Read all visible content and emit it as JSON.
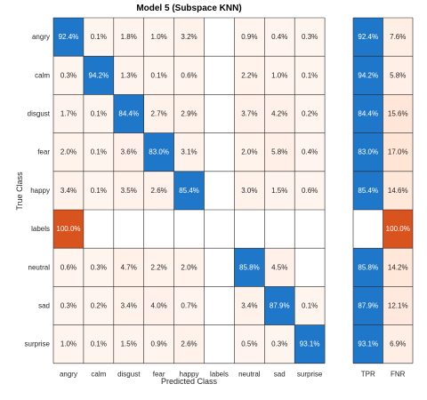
{
  "chart_data": {
    "type": "heatmap",
    "title": "Model 5 (Subspace KNN)",
    "xlabel": "Predicted Class",
    "ylabel": "True Class",
    "row_labels": [
      "angry",
      "calm",
      "disgust",
      "fear",
      "happy",
      "labels",
      "neutral",
      "sad",
      "surprise"
    ],
    "col_labels": [
      "angry",
      "calm",
      "disgust",
      "fear",
      "happy",
      "labels",
      "neutral",
      "sad",
      "surprise"
    ],
    "values": [
      [
        "92.4%",
        "0.1%",
        "1.8%",
        "1.0%",
        "3.2%",
        "",
        "0.9%",
        "0.4%",
        "0.3%"
      ],
      [
        "0.3%",
        "94.2%",
        "1.3%",
        "0.1%",
        "0.6%",
        "",
        "2.2%",
        "1.0%",
        "0.1%"
      ],
      [
        "1.7%",
        "0.1%",
        "84.4%",
        "2.7%",
        "2.9%",
        "",
        "3.7%",
        "4.2%",
        "0.2%"
      ],
      [
        "2.0%",
        "0.1%",
        "3.6%",
        "83.0%",
        "3.1%",
        "",
        "2.0%",
        "5.8%",
        "0.4%"
      ],
      [
        "3.4%",
        "0.1%",
        "3.5%",
        "2.6%",
        "85.4%",
        "",
        "3.0%",
        "1.5%",
        "0.6%"
      ],
      [
        "100.0%",
        "",
        "",
        "",
        "",
        "",
        "",
        "",
        ""
      ],
      [
        "0.6%",
        "0.3%",
        "4.7%",
        "2.2%",
        "2.0%",
        "",
        "85.8%",
        "4.5%",
        ""
      ],
      [
        "0.3%",
        "0.2%",
        "3.4%",
        "4.0%",
        "0.7%",
        "",
        "3.4%",
        "87.9%",
        "0.1%"
      ],
      [
        "1.0%",
        "0.1%",
        "1.5%",
        "0.9%",
        "2.6%",
        "",
        "0.5%",
        "0.3%",
        "93.1%"
      ]
    ],
    "summary_labels": [
      "TPR",
      "FNR"
    ],
    "tpr": [
      "92.4%",
      "94.2%",
      "84.4%",
      "83.0%",
      "85.4%",
      "",
      "85.8%",
      "87.9%",
      "93.1%"
    ],
    "fnr": [
      "7.6%",
      "5.8%",
      "15.6%",
      "17.0%",
      "14.6%",
      "100.0%",
      "14.2%",
      "12.1%",
      "6.9%"
    ],
    "colors": {
      "correct": "#1f77c9",
      "incorrect_full": "#d9531e",
      "incorrect_light": "#fbece6",
      "grid": "#262626"
    }
  }
}
